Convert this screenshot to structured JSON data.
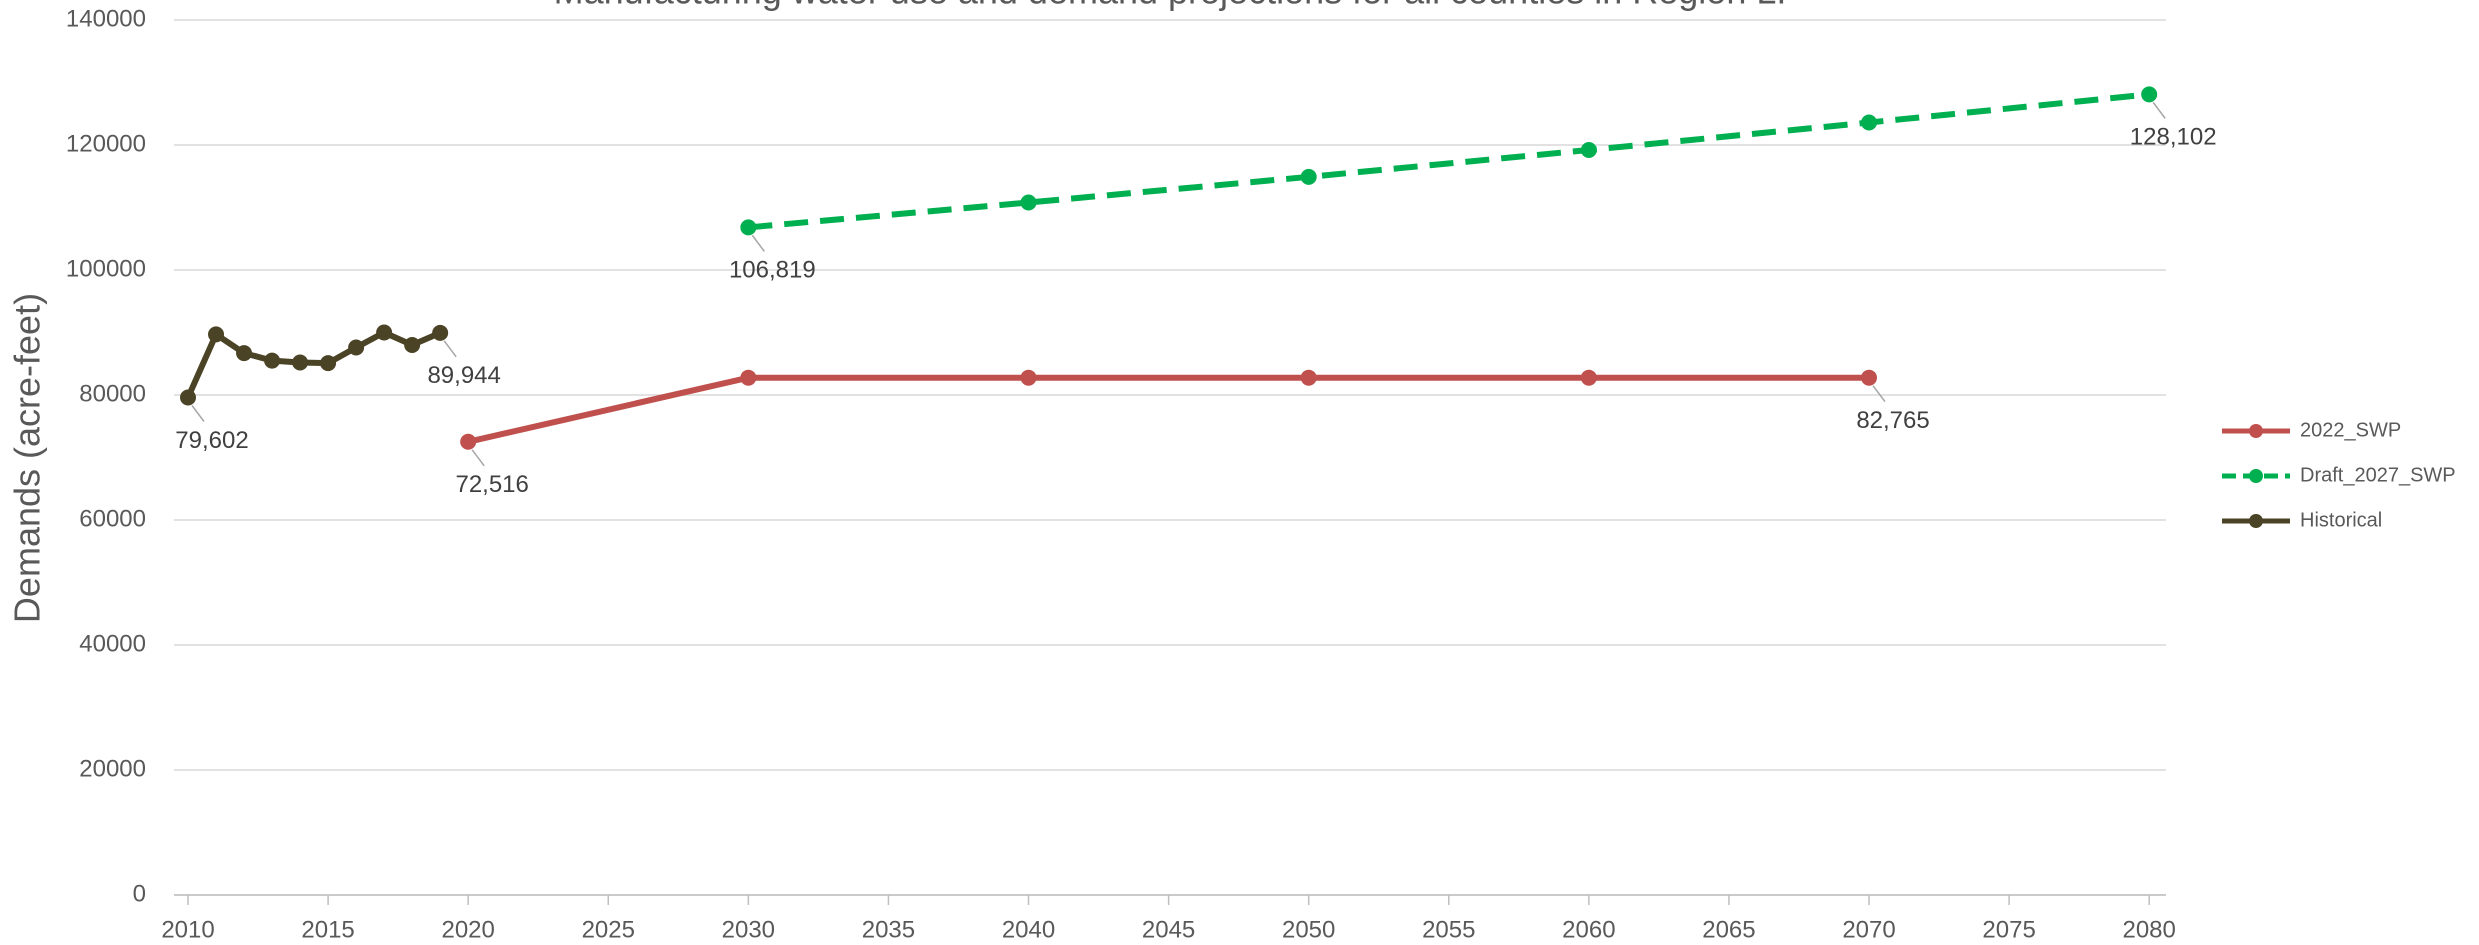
{
  "chart_data": {
    "type": "line",
    "title": "Manufacturing water use and demand projections for all counties in Region L.",
    "y_label": "Demands (acre-feet)",
    "xlim": [
      2009.5,
      2080.6
    ],
    "xticks": [
      2010,
      2015,
      2020,
      2025,
      2030,
      2035,
      2040,
      2045,
      2050,
      2055,
      2060,
      2065,
      2070,
      2075,
      2080
    ],
    "ylim": [
      0,
      140000
    ],
    "yticks": [
      0,
      20000,
      40000,
      60000,
      80000,
      100000,
      120000,
      140000
    ],
    "grid": true,
    "legend": "right",
    "series": [
      {
        "name": "2022_SWP",
        "color": "#c0504d",
        "line_style": "solid",
        "x": [
          2020,
          2030,
          2040,
          2050,
          2060,
          2070
        ],
        "values": [
          72516,
          82765,
          82765,
          82765,
          82765,
          82765
        ],
        "value_labels": [
          "72,516",
          null,
          null,
          null,
          null,
          "82,765"
        ]
      },
      {
        "name": "Draft_2027_SWP",
        "color": "#00b050",
        "line_style": "dashed",
        "x": [
          2030,
          2040,
          2050,
          2060,
          2070,
          2080
        ],
        "values": [
          106819,
          110800,
          114900,
          119200,
          123600,
          128102
        ],
        "value_labels": [
          "106,819",
          null,
          null,
          null,
          null,
          "128,102"
        ]
      },
      {
        "name": "Historical",
        "color": "#4a4326",
        "line_style": "solid",
        "x": [
          2010,
          2011,
          2012,
          2013,
          2014,
          2015,
          2016,
          2017,
          2018,
          2019
        ],
        "values": [
          79602,
          89700,
          86700,
          85500,
          85200,
          85100,
          87600,
          90000,
          88000,
          89944
        ],
        "value_labels": [
          "79,602",
          null,
          null,
          null,
          null,
          null,
          null,
          null,
          null,
          "89,944"
        ]
      }
    ]
  }
}
